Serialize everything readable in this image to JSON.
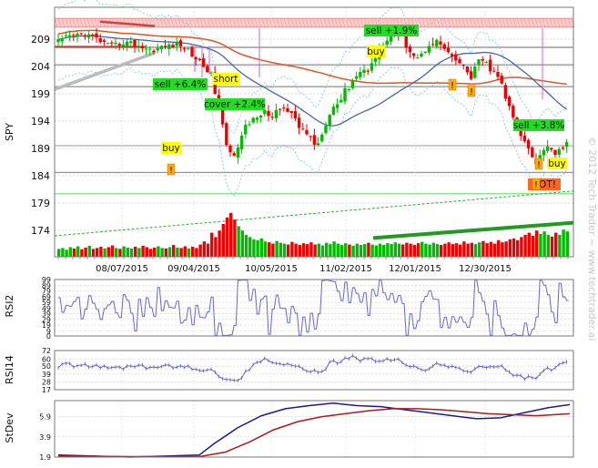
{
  "chart_data": [
    {
      "type": "candlestick",
      "ylabel": "SPY",
      "ylim": [
        169.5,
        214
      ],
      "y_ticks": [
        174,
        179,
        184,
        189,
        194,
        199,
        204,
        209
      ],
      "x_tick_labels": [
        "08/07/2015",
        "09/04/2015",
        "10/05/2015",
        "11/02/2015",
        "12/01/2015",
        "12/30/2015"
      ],
      "price_path": [
        [
          0,
          208.5
        ],
        [
          6,
          209.5
        ],
        [
          12,
          210
        ],
        [
          18,
          209
        ],
        [
          24,
          207.5
        ],
        [
          30,
          208.5
        ],
        [
          36,
          208
        ],
        [
          42,
          207
        ],
        [
          48,
          207.5
        ],
        [
          54,
          208
        ],
        [
          58,
          207.5
        ],
        [
          62,
          206
        ],
        [
          66,
          204.5
        ],
        [
          70,
          203
        ],
        [
          72,
          199.5
        ],
        [
          74,
          197
        ],
        [
          76,
          192
        ],
        [
          78,
          189
        ],
        [
          80,
          187.5
        ],
        [
          82,
          189
        ],
        [
          84,
          191
        ],
        [
          86,
          193
        ],
        [
          88,
          193
        ],
        [
          90,
          195
        ],
        [
          92,
          194.5
        ],
        [
          94,
          196
        ],
        [
          96,
          195
        ],
        [
          98,
          194.5
        ],
        [
          100,
          196
        ],
        [
          104,
          196
        ],
        [
          108,
          195
        ],
        [
          110,
          193
        ],
        [
          112,
          192.5
        ],
        [
          114,
          192
        ],
        [
          116,
          191
        ],
        [
          118,
          189.5
        ],
        [
          120,
          190.5
        ],
        [
          122,
          192
        ],
        [
          124,
          195
        ],
        [
          126,
          196.5
        ],
        [
          128,
          197
        ],
        [
          130,
          198
        ],
        [
          132,
          199.5
        ],
        [
          134,
          200.5
        ],
        [
          136,
          202
        ],
        [
          138,
          202.5
        ],
        [
          140,
          203.5
        ],
        [
          142,
          203
        ],
        [
          144,
          205
        ],
        [
          146,
          205.5
        ],
        [
          148,
          207
        ],
        [
          150,
          208.5
        ],
        [
          152,
          209
        ],
        [
          154,
          210
        ],
        [
          156,
          209.5
        ],
        [
          158,
          209.5
        ],
        [
          160,
          208
        ],
        [
          162,
          207
        ],
        [
          164,
          206
        ],
        [
          166,
          205.5
        ],
        [
          168,
          206.5
        ],
        [
          170,
          208
        ],
        [
          172,
          208.5
        ],
        [
          174,
          208.5
        ],
        [
          176,
          208
        ],
        [
          178,
          207
        ],
        [
          180,
          206
        ],
        [
          182,
          205
        ],
        [
          184,
          205
        ],
        [
          186,
          204
        ],
        [
          188,
          203
        ],
        [
          190,
          202
        ],
        [
          192,
          204
        ],
        [
          194,
          205
        ],
        [
          196,
          205
        ],
        [
          198,
          204
        ],
        [
          200,
          203
        ],
        [
          202,
          202
        ],
        [
          204,
          201
        ],
        [
          206,
          198
        ],
        [
          208,
          196
        ],
        [
          210,
          194
        ],
        [
          212,
          192
        ],
        [
          214,
          190.5
        ],
        [
          216,
          189.5
        ],
        [
          218,
          188
        ],
        [
          220,
          186.5
        ],
        [
          222,
          188
        ],
        [
          224,
          189.5
        ],
        [
          226,
          189
        ],
        [
          228,
          188
        ],
        [
          230,
          189
        ],
        [
          232,
          189
        ],
        [
          234,
          190.5
        ]
      ],
      "volume_levels": [
        0.18,
        0.2,
        0.16,
        0.22,
        0.19,
        0.24,
        0.17,
        0.21,
        0.25,
        0.18,
        0.2,
        0.23,
        0.19,
        0.22,
        0.26,
        0.2,
        0.18,
        0.24,
        0.21,
        0.19,
        0.23,
        0.2,
        0.25,
        0.22,
        0.18,
        0.21,
        0.24,
        0.2,
        0.19,
        0.22,
        0.27,
        0.21,
        0.2,
        0.24,
        0.19,
        0.23,
        0.2,
        0.28,
        0.35,
        0.3,
        0.55,
        0.45,
        0.6,
        0.75,
        0.9,
        1.0,
        0.85,
        0.7,
        0.6,
        0.5,
        0.45,
        0.4,
        0.38,
        0.42,
        0.35,
        0.33,
        0.3,
        0.36,
        0.32,
        0.3,
        0.28,
        0.34,
        0.3,
        0.27,
        0.31,
        0.29,
        0.33,
        0.28,
        0.3,
        0.26,
        0.32,
        0.29,
        0.35,
        0.3,
        0.27,
        0.31,
        0.28,
        0.25,
        0.3,
        0.27,
        0.29,
        0.32,
        0.28,
        0.26,
        0.3,
        0.27,
        0.31,
        0.29,
        0.33,
        0.3,
        0.28,
        0.32,
        0.3,
        0.27,
        0.31,
        0.34,
        0.3,
        0.28,
        0.32,
        0.29,
        0.27,
        0.3,
        0.33,
        0.29,
        0.31,
        0.28,
        0.35,
        0.3,
        0.32,
        0.29,
        0.33,
        0.36,
        0.31,
        0.34,
        0.3,
        0.38,
        0.33,
        0.35,
        0.4,
        0.42,
        0.38,
        0.45,
        0.5,
        0.55,
        0.48,
        0.6,
        0.52,
        0.58,
        0.5,
        0.46,
        0.55,
        0.5,
        0.62,
        0.58,
        0.52,
        0.48,
        0.5
      ],
      "annotations": [
        {
          "text": "sell +6.4%",
          "color": "#22dd22"
        },
        {
          "text": "short",
          "color": "#ffff00"
        },
        {
          "text": "cover +2.4%",
          "color": "#22dd22"
        },
        {
          "text": "buy",
          "color": "#ffff00"
        },
        {
          "text": "sell +1.9%",
          "color": "#22dd22"
        },
        {
          "text": "buy",
          "color": "#ffff00"
        },
        {
          "text": "sell +3.8%",
          "color": "#22dd22"
        },
        {
          "text": "buy",
          "color": "#ffff00"
        },
        {
          "text": "BOT!",
          "color": "#ff6622"
        }
      ],
      "warning_marker": "!",
      "colors": {
        "up": "#00bb00",
        "down": "#ee0000",
        "ma_short": "#4466aa",
        "ma_long": "#dd5522",
        "band": "#88ccee",
        "resistance": "#ff9999"
      }
    },
    {
      "type": "line",
      "ylabel": "RSI2",
      "ylim": [
        0,
        99
      ],
      "y_ticks": [
        0,
        9,
        19,
        29,
        39,
        49,
        59,
        69,
        79,
        89,
        99
      ],
      "color": "#6666cc"
    },
    {
      "type": "line",
      "ylabel": "RSI14",
      "ylim": [
        17,
        72
      ],
      "y_ticks": [
        17,
        28,
        39,
        50,
        60,
        72
      ],
      "color": "#6666cc"
    },
    {
      "type": "line",
      "ylabel": "StDev",
      "ylim": [
        1.9,
        7.5
      ],
      "y_ticks": [
        1.9,
        3.9,
        5.9
      ],
      "series": [
        {
          "color": "#1a1a99",
          "path": [
            [
              0,
              2.1
            ],
            [
              30,
              2.0
            ],
            [
              60,
              1.9
            ],
            [
              90,
              2.0
            ],
            [
              118,
              2.1
            ],
            [
              130,
              3.2
            ],
            [
              150,
              4.8
            ],
            [
              170,
              6.0
            ],
            [
              190,
              6.7
            ],
            [
              210,
              7.0
            ],
            [
              230,
              7.25
            ],
            [
              250,
              7.0
            ],
            [
              270,
              6.9
            ],
            [
              290,
              6.6
            ],
            [
              310,
              6.3
            ],
            [
              330,
              6.0
            ],
            [
              350,
              5.7
            ],
            [
              370,
              5.8
            ],
            [
              390,
              6.3
            ],
            [
              410,
              6.8
            ],
            [
              428,
              7.1
            ]
          ]
        },
        {
          "color": "#aa1a1a",
          "path": [
            [
              0,
              2.0
            ],
            [
              60,
              1.95
            ],
            [
              118,
              1.95
            ],
            [
              140,
              2.4
            ],
            [
              160,
              3.4
            ],
            [
              180,
              4.6
            ],
            [
              200,
              5.4
            ],
            [
              220,
              5.9
            ],
            [
              240,
              6.2
            ],
            [
              260,
              6.5
            ],
            [
              280,
              6.7
            ],
            [
              300,
              6.7
            ],
            [
              320,
              6.6
            ],
            [
              340,
              6.4
            ],
            [
              360,
              6.2
            ],
            [
              380,
              6.1
            ],
            [
              400,
              6.0
            ],
            [
              428,
              6.2
            ]
          ]
        }
      ]
    }
  ],
  "watermark": "© 2012 Tech Trader ~ www.techtrader.ai"
}
